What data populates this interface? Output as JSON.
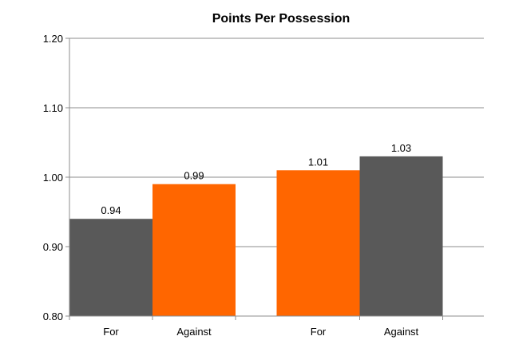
{
  "chart_data": {
    "type": "bar",
    "title": "Points Per Possession",
    "xlabel": "",
    "ylabel": "",
    "ylim": [
      0.8,
      1.2
    ],
    "yticks": [
      "0.80",
      "0.90",
      "1.00",
      "1.10",
      "1.20"
    ],
    "grid": true,
    "legend": "none",
    "colors": {
      "dark": "#595959",
      "orange": "#ff6600"
    },
    "bars": [
      {
        "group": 0,
        "category": "For",
        "value": 0.94,
        "label": "0.94",
        "color": "#595959"
      },
      {
        "group": 0,
        "category": "Against",
        "value": 0.99,
        "label": "0.99",
        "color": "#ff6600"
      },
      {
        "group": 1,
        "category": "For",
        "value": 1.01,
        "label": "1.01",
        "color": "#ff6600"
      },
      {
        "group": 1,
        "category": "Against",
        "value": 1.03,
        "label": "1.03",
        "color": "#595959"
      }
    ]
  }
}
